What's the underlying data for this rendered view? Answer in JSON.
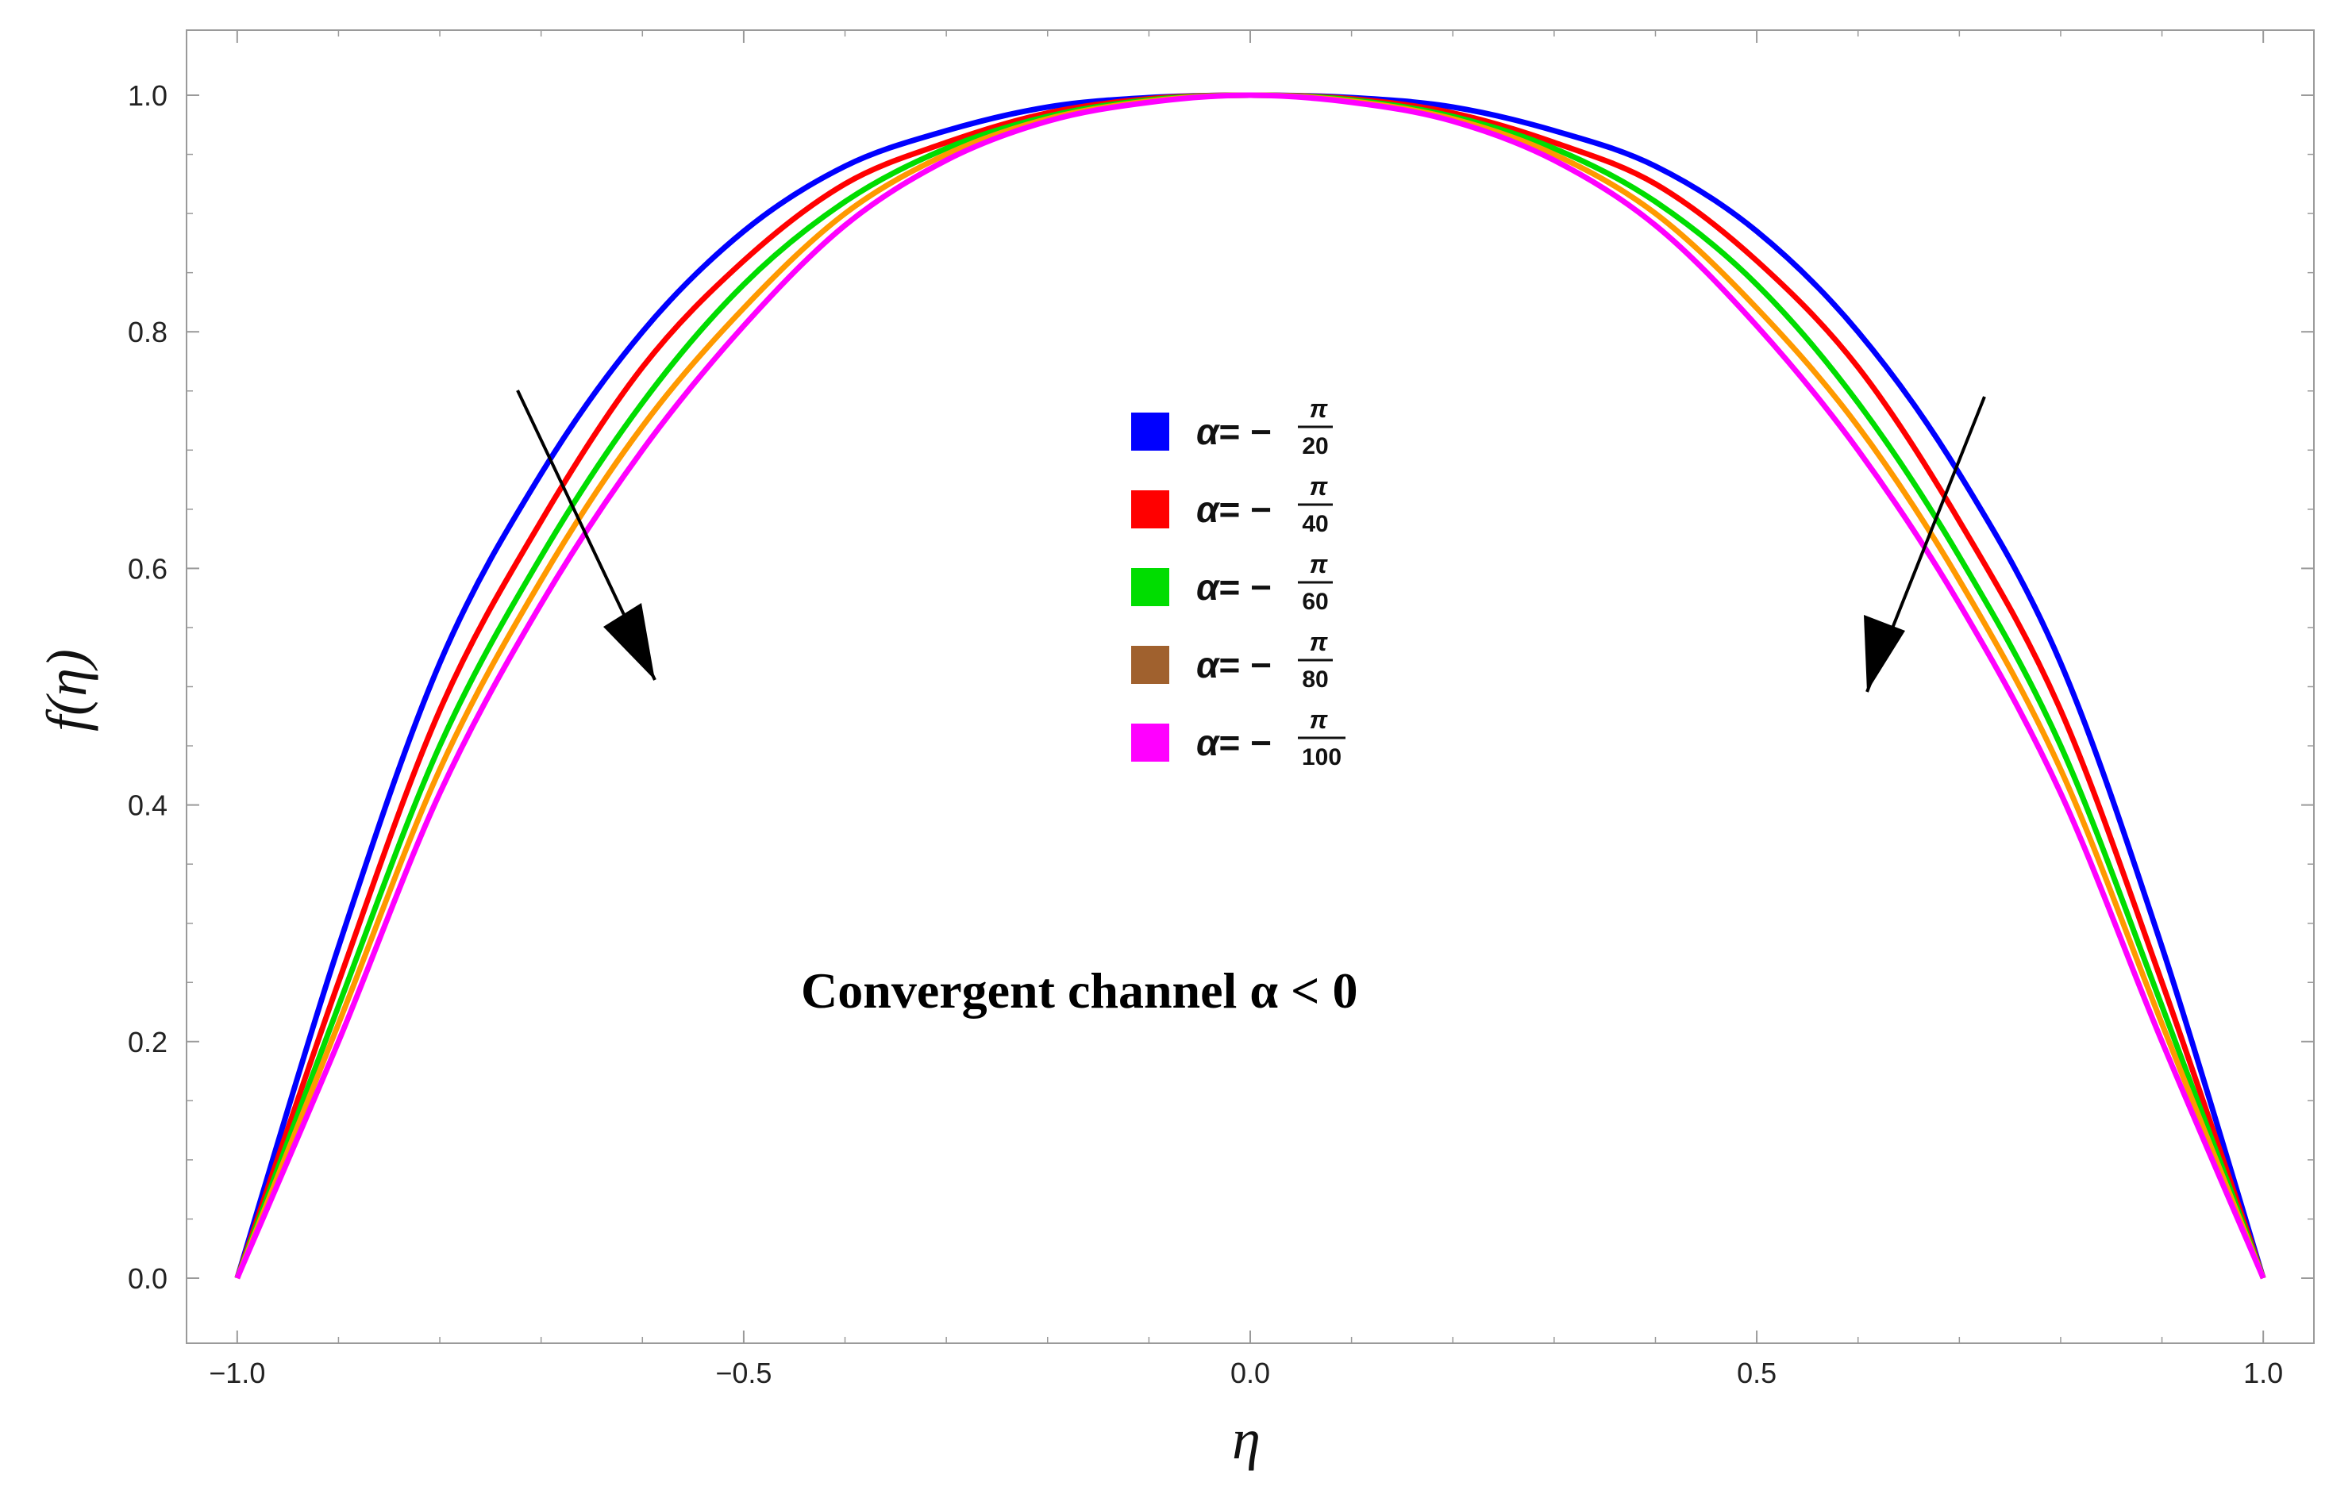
{
  "chart_data": {
    "type": "line",
    "xlabel": "η",
    "ylabel": "f(η)",
    "xlim": [
      -1.05,
      1.05
    ],
    "ylim": [
      -0.055,
      1.055
    ],
    "x_ticks": [
      -1.0,
      -0.5,
      0.0,
      0.5,
      1.0
    ],
    "x_tick_labels": [
      "−1.0",
      "−0.5",
      "0.0",
      "0.5",
      "1.0"
    ],
    "y_ticks": [
      0.0,
      0.2,
      0.4,
      0.6,
      0.8,
      1.0
    ],
    "y_tick_labels": [
      "0.0",
      "0.2",
      "0.4",
      "0.6",
      "0.8",
      "1.0"
    ],
    "grid": false,
    "legend_position": "center",
    "annotation": "Convergent channel α  <  0",
    "x": [
      -1.0,
      -0.9,
      -0.8,
      -0.7,
      -0.6,
      -0.5,
      -0.4,
      -0.3,
      -0.2,
      -0.1,
      0.0,
      0.1,
      0.2,
      0.3,
      0.4,
      0.5,
      0.6,
      0.7,
      0.8,
      0.9,
      1.0
    ],
    "series": [
      {
        "name": "α= −π/20",
        "legend_numerator": "π",
        "legend_denominator": "20",
        "color": "#0000ff",
        "values": [
          0.0,
          0.28,
          0.52,
          0.68,
          0.8,
          0.885,
          0.94,
          0.97,
          0.99,
          0.998,
          1.0,
          0.998,
          0.99,
          0.97,
          0.94,
          0.885,
          0.8,
          0.68,
          0.52,
          0.28,
          0.0
        ]
      },
      {
        "name": "α= −π/40",
        "legend_numerator": "π",
        "legend_denominator": "40",
        "color": "#ff0000",
        "values": [
          0.0,
          0.25,
          0.48,
          0.64,
          0.77,
          0.86,
          0.925,
          0.96,
          0.985,
          0.997,
          1.0,
          0.997,
          0.985,
          0.96,
          0.925,
          0.86,
          0.77,
          0.64,
          0.48,
          0.25,
          0.0
        ]
      },
      {
        "name": "α= −π/60",
        "legend_numerator": "π",
        "legend_denominator": "60",
        "color": "#00dd00",
        "values": [
          0.0,
          0.23,
          0.45,
          0.61,
          0.74,
          0.84,
          0.91,
          0.955,
          0.982,
          0.996,
          1.0,
          0.996,
          0.982,
          0.955,
          0.91,
          0.84,
          0.74,
          0.61,
          0.45,
          0.23,
          0.0
        ]
      },
      {
        "name": "α= −π/80",
        "legend_numerator": "π",
        "legend_denominator": "80",
        "color": "#ff9900",
        "legend_color": "#a0612e",
        "values": [
          0.0,
          0.215,
          0.43,
          0.59,
          0.72,
          0.82,
          0.9,
          0.95,
          0.98,
          0.995,
          1.0,
          0.995,
          0.98,
          0.95,
          0.9,
          0.82,
          0.72,
          0.59,
          0.43,
          0.215,
          0.0
        ]
      },
      {
        "name": "α= −π/100",
        "legend_numerator": "π",
        "legend_denominator": "100",
        "color": "#ff00ff",
        "values": [
          0.0,
          0.2,
          0.41,
          0.57,
          0.7,
          0.805,
          0.89,
          0.945,
          0.978,
          0.994,
          1.0,
          0.994,
          0.978,
          0.945,
          0.89,
          0.805,
          0.7,
          0.57,
          0.41,
          0.2,
          0.0
        ]
      }
    ]
  }
}
